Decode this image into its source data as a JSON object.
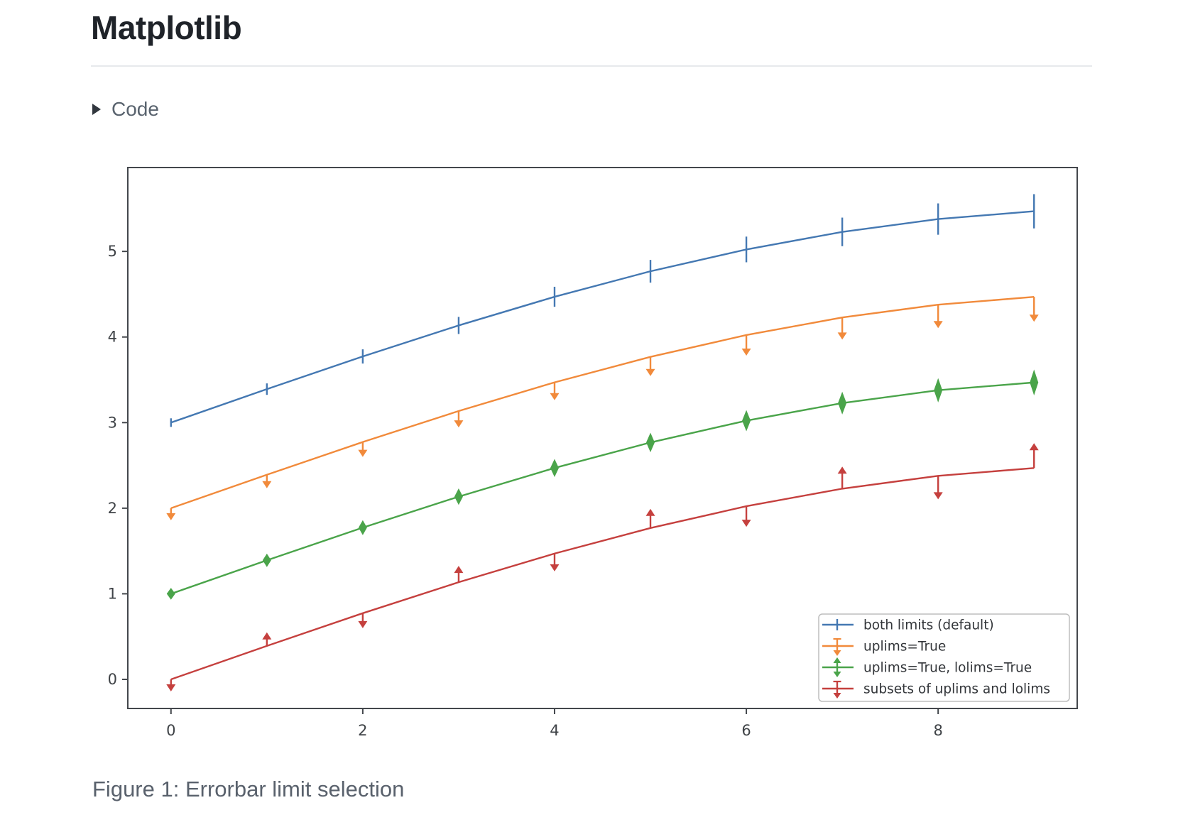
{
  "page": {
    "title": "Matplotlib",
    "code_toggle": {
      "label": "Code",
      "icon": "triangle-right"
    },
    "caption": "Figure 1: Errorbar limit selection"
  },
  "chart_data": {
    "type": "line",
    "title": "",
    "xlabel": "",
    "ylabel": "",
    "x": [
      0,
      1,
      2,
      3,
      4,
      5,
      6,
      7,
      8,
      9
    ],
    "series": [
      {
        "name": "both limits (default)",
        "color": "#4478b2",
        "limit_style": "both",
        "values": [
          3.0,
          3.391,
          3.773,
          4.135,
          4.47,
          4.768,
          5.023,
          5.228,
          5.378,
          5.469
        ]
      },
      {
        "name": "uplims=True",
        "color": "#f18a3b",
        "limit_style": "uplims",
        "values": [
          2.0,
          2.391,
          2.773,
          3.135,
          3.47,
          3.768,
          4.023,
          4.228,
          4.378,
          4.469
        ]
      },
      {
        "name": "uplims=True, lolims=True",
        "color": "#4aa44a",
        "limit_style": "uplims_lolims",
        "values": [
          1.0,
          1.391,
          1.773,
          2.135,
          2.47,
          2.768,
          3.023,
          3.228,
          3.378,
          3.469
        ]
      },
      {
        "name": "subsets of uplims and lolims",
        "color": "#c5403e",
        "limit_style": "alternating",
        "values": [
          0.0,
          0.391,
          0.773,
          1.135,
          1.47,
          1.768,
          2.023,
          2.228,
          2.378,
          2.469
        ]
      }
    ],
    "yerr": [
      0.05,
      0.067,
      0.083,
      0.1,
      0.117,
      0.133,
      0.15,
      0.167,
      0.183,
      0.2
    ],
    "xticks": [
      0,
      2,
      4,
      6,
      8
    ],
    "yticks": [
      0,
      1,
      2,
      3,
      4,
      5
    ],
    "xlim": [
      -0.45,
      9.45
    ],
    "ylim": [
      -0.34,
      5.98
    ],
    "grid": false,
    "legend_position": "lower right",
    "axis_color": "#43474c",
    "tick_label_color": "#3f4347",
    "legend_text_color": "#33363a",
    "legend_border_color": "#bdbdbd"
  }
}
